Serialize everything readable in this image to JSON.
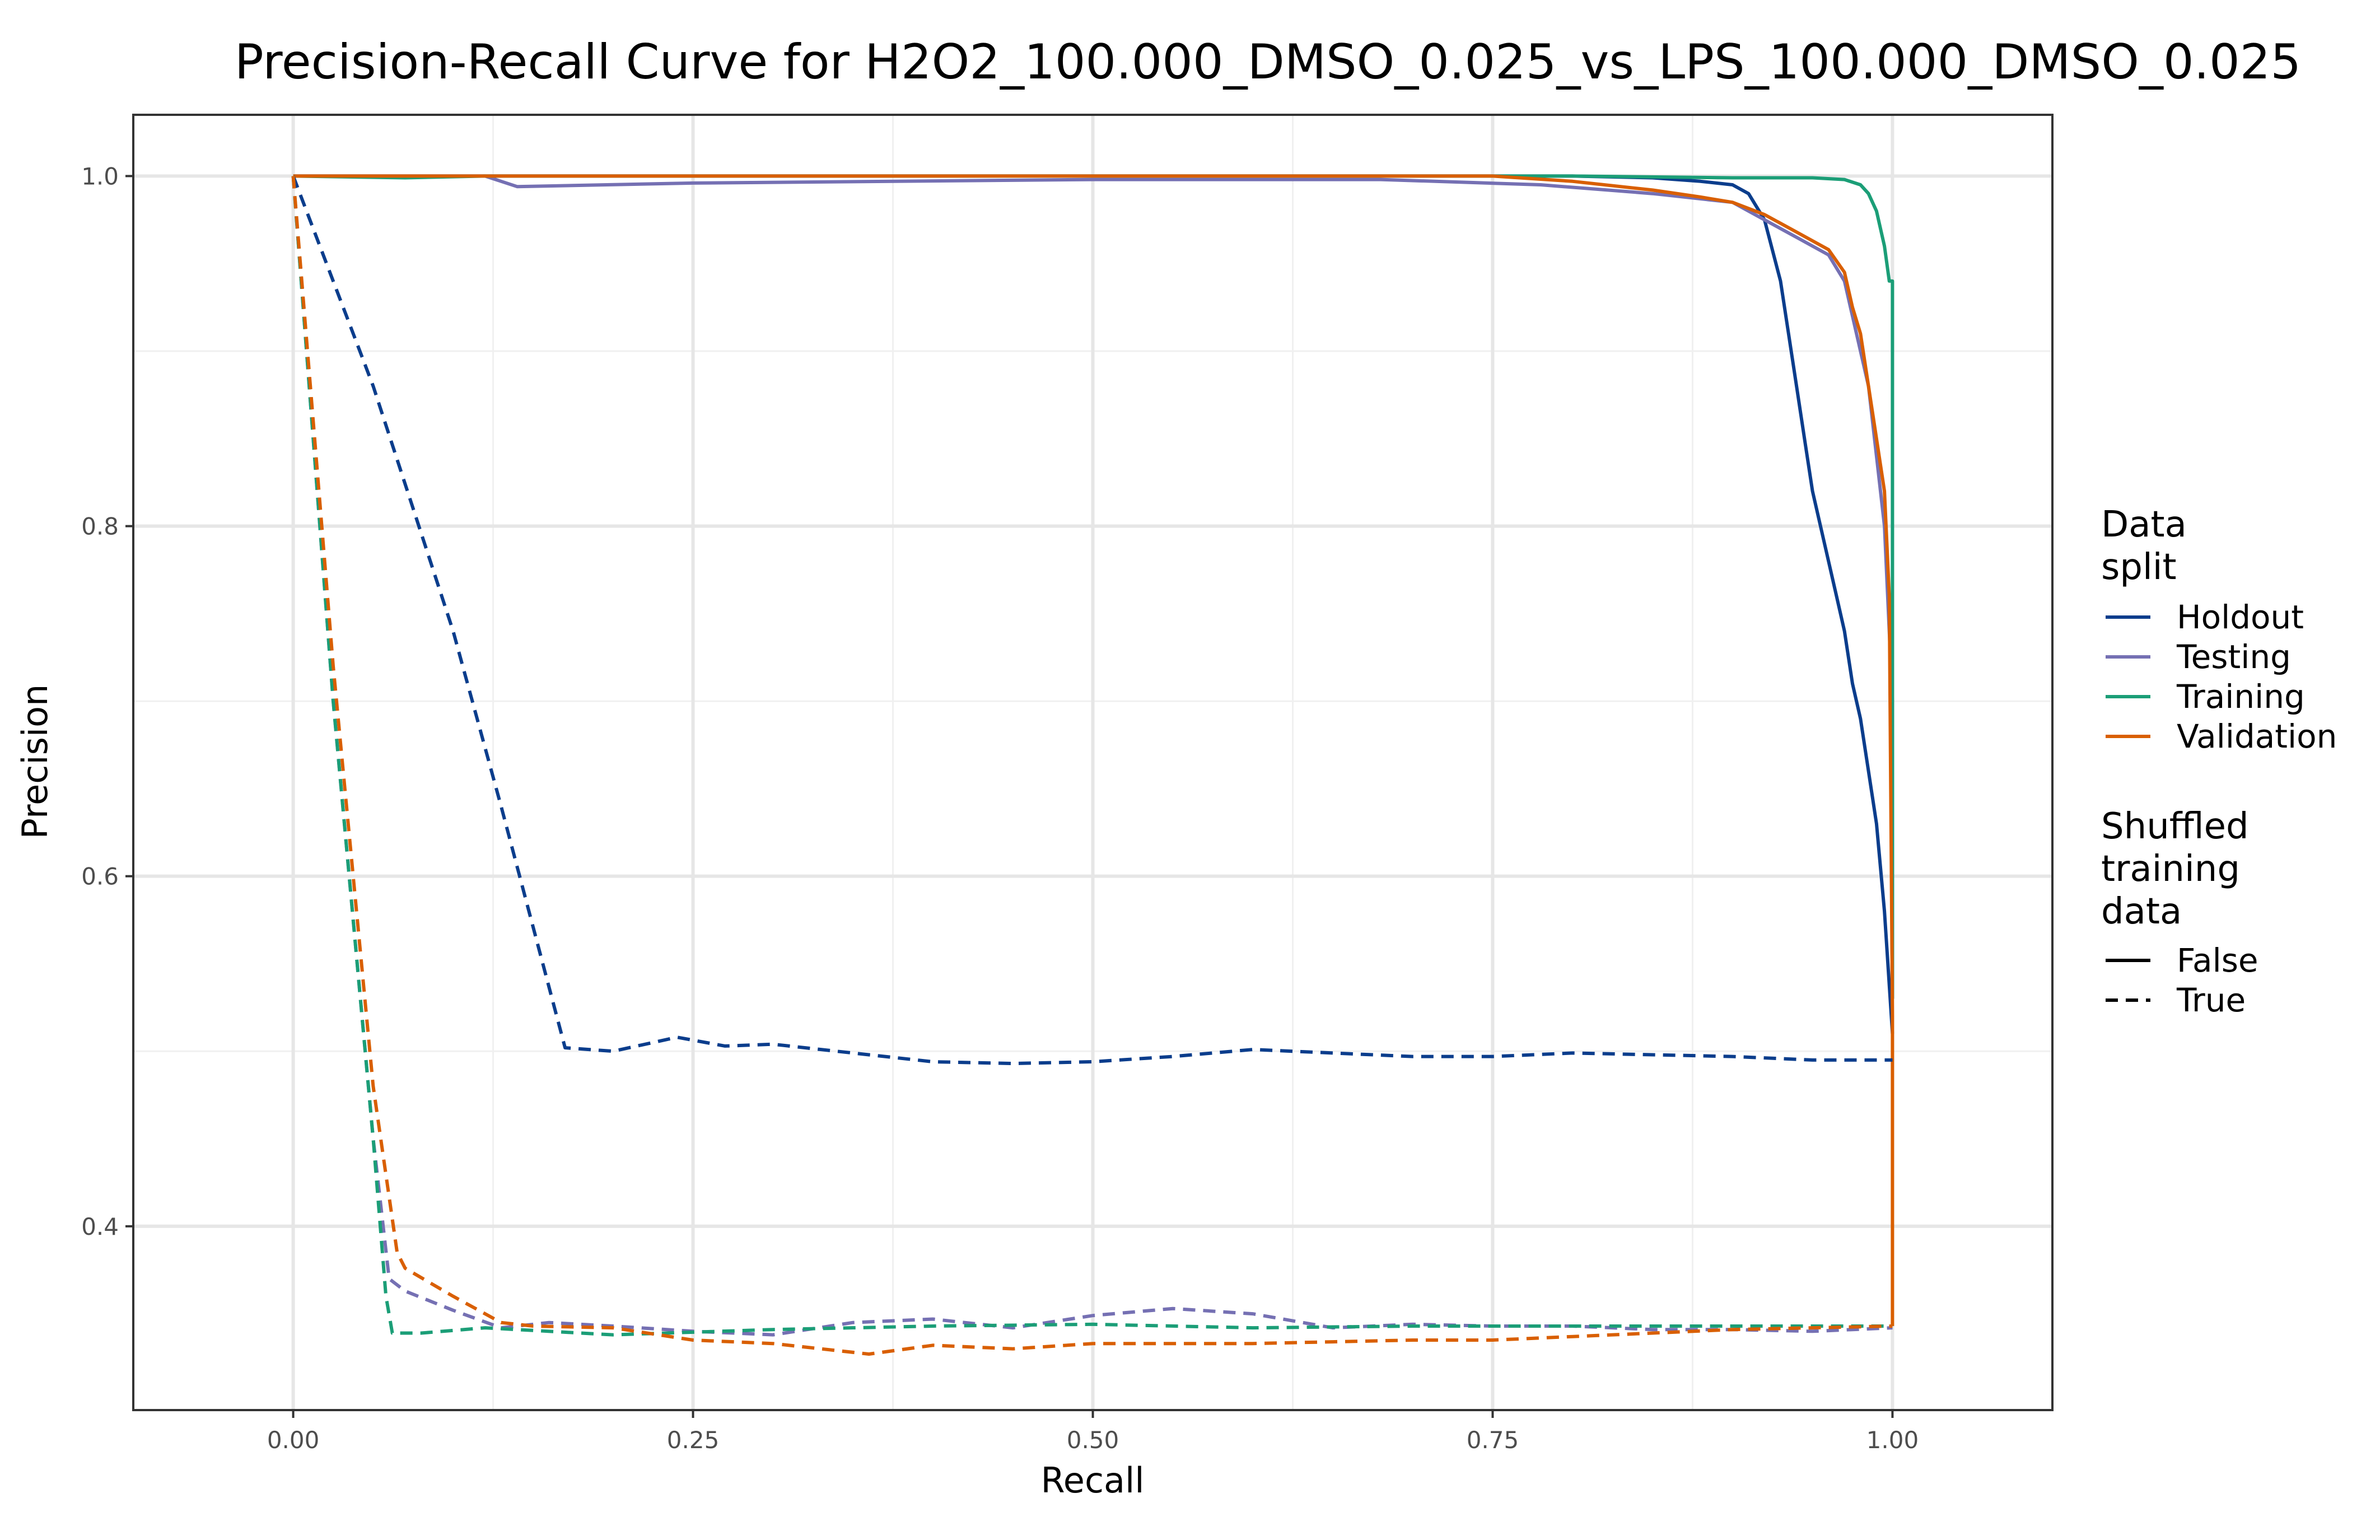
{
  "chart_data": {
    "type": "line",
    "title": "Precision-Recall Curve for H2O2_100.000_DMSO_0.025_vs_LPS_100.000_DMSO_0.025",
    "xlabel": "Recall",
    "ylabel": "Precision",
    "xlim": [
      -0.1,
      1.1
    ],
    "ylim": [
      0.295,
      1.035
    ],
    "xticks": [
      0.0,
      0.25,
      0.5,
      0.75,
      1.0
    ],
    "xtick_labels": [
      "0.00",
      "0.25",
      "0.50",
      "0.75",
      "1.00"
    ],
    "yticks": [
      0.4,
      0.6,
      0.8,
      1.0
    ],
    "ytick_labels": [
      "0.4",
      "0.6",
      "0.8",
      "1.0"
    ],
    "grid": true,
    "legend_position": "right",
    "legend": {
      "color_title": "Data\nsplit",
      "color_entries": [
        {
          "name": "Holdout",
          "color": "#0b3d8c"
        },
        {
          "name": "Testing",
          "color": "#7570b3"
        },
        {
          "name": "Training",
          "color": "#1b9e77"
        },
        {
          "name": "Validation",
          "color": "#d95f02"
        }
      ],
      "linetype_title": "Shuffled\ntraining\ndata",
      "linetype_entries": [
        {
          "name": "False",
          "dash": "solid"
        },
        {
          "name": "True",
          "dash": "dashed"
        }
      ]
    },
    "series": [
      {
        "split": "Holdout",
        "shuffled": "False",
        "color": "#0b3d8c",
        "x": [
          0.0,
          0.1,
          0.3,
          0.5,
          0.7,
          0.8,
          0.85,
          0.88,
          0.9,
          0.91,
          0.92,
          0.93,
          0.935,
          0.94,
          0.945,
          0.95,
          0.955,
          0.96,
          0.965,
          0.97,
          0.975,
          0.98,
          0.985,
          0.99,
          0.995,
          1.0
        ],
        "y": [
          1.0,
          1.0,
          1.0,
          1.0,
          1.0,
          1.0,
          0.999,
          0.997,
          0.995,
          0.99,
          0.975,
          0.94,
          0.91,
          0.88,
          0.85,
          0.82,
          0.8,
          0.78,
          0.76,
          0.74,
          0.71,
          0.69,
          0.66,
          0.63,
          0.58,
          0.51
        ]
      },
      {
        "split": "Testing",
        "shuffled": "False",
        "color": "#7570b3",
        "x": [
          0.0,
          0.12,
          0.14,
          0.25,
          0.5,
          0.68,
          0.78,
          0.85,
          0.9,
          0.92,
          0.94,
          0.96,
          0.97,
          0.975,
          0.98,
          0.985,
          0.99,
          0.995,
          1.0,
          1.0
        ],
        "y": [
          1.0,
          1.0,
          0.994,
          0.996,
          0.998,
          0.998,
          0.995,
          0.99,
          0.985,
          0.975,
          0.965,
          0.955,
          0.94,
          0.92,
          0.9,
          0.88,
          0.84,
          0.8,
          0.7,
          0.53
        ]
      },
      {
        "split": "Training",
        "shuffled": "False",
        "color": "#1b9e77",
        "x": [
          0.0,
          0.07,
          0.12,
          0.5,
          0.8,
          0.9,
          0.95,
          0.97,
          0.98,
          0.985,
          0.99,
          0.995,
          0.998,
          1.0,
          1.0,
          1.0
        ],
        "y": [
          1.0,
          0.999,
          1.0,
          1.0,
          1.0,
          0.999,
          0.999,
          0.998,
          0.995,
          0.99,
          0.98,
          0.96,
          0.94,
          0.94,
          0.79,
          0.53
        ]
      },
      {
        "split": "Validation",
        "shuffled": "False",
        "color": "#d95f02",
        "x": [
          0.0,
          0.2,
          0.5,
          0.75,
          0.8,
          0.85,
          0.88,
          0.9,
          0.92,
          0.94,
          0.96,
          0.97,
          0.975,
          0.98,
          0.985,
          0.99,
          0.995,
          0.998,
          1.0,
          1.0
        ],
        "y": [
          1.0,
          1.0,
          1.0,
          1.0,
          0.997,
          0.992,
          0.988,
          0.985,
          0.978,
          0.968,
          0.958,
          0.945,
          0.925,
          0.91,
          0.88,
          0.85,
          0.82,
          0.76,
          0.52,
          0.343
        ]
      },
      {
        "split": "Holdout",
        "shuffled": "True",
        "color": "#0b3d8c",
        "x": [
          0.0,
          0.05,
          0.1,
          0.13,
          0.17,
          0.2,
          0.24,
          0.27,
          0.3,
          0.35,
          0.4,
          0.45,
          0.5,
          0.55,
          0.6,
          0.65,
          0.7,
          0.75,
          0.8,
          0.85,
          0.9,
          0.95,
          1.0
        ],
        "y": [
          1.0,
          0.88,
          0.74,
          0.64,
          0.502,
          0.5,
          0.508,
          0.503,
          0.504,
          0.499,
          0.494,
          0.493,
          0.494,
          0.497,
          0.501,
          0.499,
          0.497,
          0.497,
          0.499,
          0.498,
          0.497,
          0.495,
          0.495
        ]
      },
      {
        "split": "Testing",
        "shuffled": "True",
        "color": "#7570b3",
        "x": [
          0.0,
          0.025,
          0.05,
          0.06,
          0.07,
          0.1,
          0.13,
          0.16,
          0.2,
          0.25,
          0.3,
          0.35,
          0.4,
          0.45,
          0.5,
          0.55,
          0.6,
          0.65,
          0.7,
          0.75,
          0.8,
          0.85,
          0.9,
          0.95,
          1.0
        ],
        "y": [
          1.0,
          0.7,
          0.45,
          0.37,
          0.363,
          0.352,
          0.342,
          0.345,
          0.343,
          0.34,
          0.338,
          0.345,
          0.347,
          0.342,
          0.349,
          0.353,
          0.35,
          0.342,
          0.344,
          0.343,
          0.343,
          0.341,
          0.341,
          0.34,
          0.342
        ]
      },
      {
        "split": "Training",
        "shuffled": "True",
        "color": "#1b9e77",
        "x": [
          0.0,
          0.025,
          0.05,
          0.058,
          0.062,
          0.08,
          0.12,
          0.2,
          0.3,
          0.4,
          0.5,
          0.6,
          0.7,
          0.8,
          0.9,
          1.0
        ],
        "y": [
          1.0,
          0.7,
          0.45,
          0.36,
          0.339,
          0.339,
          0.342,
          0.338,
          0.341,
          0.343,
          0.344,
          0.342,
          0.343,
          0.343,
          0.343,
          0.343
        ]
      },
      {
        "split": "Validation",
        "shuffled": "True",
        "color": "#d95f02",
        "x": [
          0.0,
          0.025,
          0.05,
          0.065,
          0.07,
          0.1,
          0.13,
          0.15,
          0.2,
          0.25,
          0.3,
          0.33,
          0.36,
          0.4,
          0.45,
          0.5,
          0.55,
          0.6,
          0.65,
          0.7,
          0.75,
          0.8,
          0.85,
          0.9,
          0.95,
          1.0
        ],
        "y": [
          1.0,
          0.72,
          0.48,
          0.385,
          0.376,
          0.36,
          0.345,
          0.343,
          0.342,
          0.335,
          0.333,
          0.33,
          0.327,
          0.332,
          0.33,
          0.333,
          0.333,
          0.333,
          0.334,
          0.335,
          0.335,
          0.337,
          0.339,
          0.341,
          0.342,
          0.343
        ]
      }
    ]
  }
}
